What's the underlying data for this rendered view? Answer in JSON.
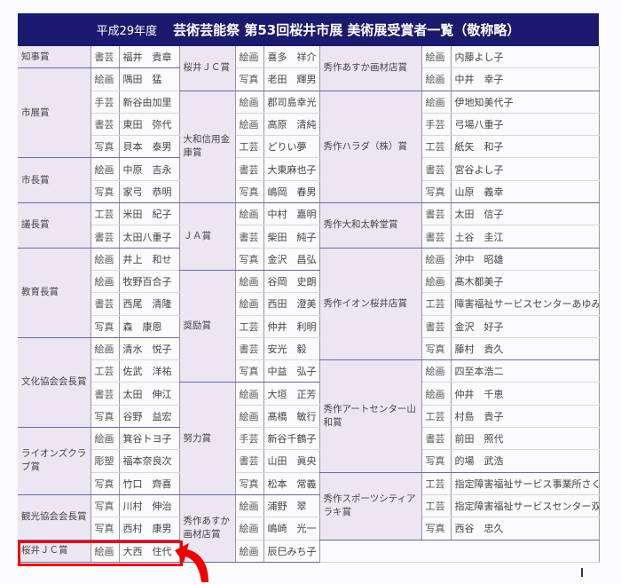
{
  "title": {
    "year": "平成29年度",
    "main": "芸術芸能祭 第53回桜井市展 美術展受賞者一覧（敬称略）"
  },
  "columns": [
    [
      {
        "award": "知事賞",
        "entries": [
          [
            "書芸",
            "福井　貴章"
          ]
        ]
      },
      {
        "award": "市展賞",
        "entries": [
          [
            "絵画",
            "隅田　猛"
          ],
          [
            "手芸",
            "新谷由加里"
          ],
          [
            "書芸",
            "東田　弥代"
          ],
          [
            "写真",
            "貝本　泰男"
          ]
        ]
      },
      {
        "award": "市長賞",
        "entries": [
          [
            "絵画",
            "中原　吉永"
          ],
          [
            "写真",
            "家弓　恭明"
          ]
        ]
      },
      {
        "award": "議長賞",
        "entries": [
          [
            "工芸",
            "米田　紀子"
          ],
          [
            "書芸",
            "太田八重子"
          ]
        ]
      },
      {
        "award": "教育長賞",
        "entries": [
          [
            "絵画",
            "井上　和せ"
          ],
          [
            "絵画",
            "牧野百合子"
          ],
          [
            "書芸",
            "西尾　清隆"
          ],
          [
            "写真",
            "森　康恩"
          ]
        ]
      },
      {
        "award": "文化協会会長賞",
        "entries": [
          [
            "絵画",
            "清水　悦子"
          ],
          [
            "工芸",
            "佐武　洋祐"
          ],
          [
            "書芸",
            "太田　伸江"
          ],
          [
            "写真",
            "谷野　益宏"
          ]
        ]
      },
      {
        "award": "ライオンズクラブ賞",
        "entries": [
          [
            "絵画",
            "箕谷トヨ子"
          ],
          [
            "彫塑",
            "福本奈良次"
          ],
          [
            "写真",
            "竹口　齊喜"
          ]
        ]
      },
      {
        "award": "観光協会会長賞",
        "entries": [
          [
            "写真",
            "川村　伸治"
          ],
          [
            "写真",
            "西村　康男"
          ]
        ]
      },
      {
        "award": "桜井ＪＣ賞",
        "entries": [
          [
            "絵画",
            "大西　住代"
          ]
        ]
      }
    ],
    [
      {
        "award": "桜井ＪＣ賞",
        "entries": [
          [
            "絵画",
            "喜多　祥介"
          ],
          [
            "写真",
            "老田　輝男"
          ]
        ]
      },
      {
        "award": "大和信用金庫賞",
        "entries": [
          [
            "絵画",
            "郡司島幸光"
          ],
          [
            "絵画",
            "高原　清純"
          ],
          [
            "工芸",
            "どりい夢"
          ],
          [
            "書芸",
            "大東麻也子"
          ],
          [
            "写真",
            "嶋岡　春男"
          ]
        ]
      },
      {
        "award": "ＪＡ賞",
        "entries": [
          [
            "絵画",
            "中村　嘉明"
          ],
          [
            "書芸",
            "柴田　純子"
          ],
          [
            "写真",
            "金沢　昌弘"
          ]
        ]
      },
      {
        "award": "奨励賞",
        "entries": [
          [
            "絵画",
            "谷岡　史朗"
          ],
          [
            "絵画",
            "西田　澄美"
          ],
          [
            "工芸",
            "仲井　利明"
          ],
          [
            "書芸",
            "安光　毅"
          ],
          [
            "写真",
            "中益　弘子"
          ]
        ]
      },
      {
        "award": "努力賞",
        "entries": [
          [
            "絵画",
            "大垣　正芳"
          ],
          [
            "絵画",
            "髙橋　敏行"
          ],
          [
            "手芸",
            "新谷千鶴子"
          ],
          [
            "書芸",
            "山田　眞央"
          ],
          [
            "写真",
            "松本　常義"
          ]
        ]
      },
      {
        "award": "秀作あすか画材店賞",
        "entries": [
          [
            "絵画",
            "浦野　翠"
          ],
          [
            "絵画",
            "嶋崎　光一"
          ],
          [
            "絵画",
            "辰巳みち子"
          ]
        ]
      }
    ],
    [
      {
        "award": "秀作あすか画材店賞",
        "entries": [
          [
            "絵画",
            "内藤よし子"
          ],
          [
            "絵画",
            "中井　幸子"
          ]
        ]
      },
      {
        "award": "秀作ハラダ（株）賞",
        "entries": [
          [
            "絵画",
            "伊地知美代子"
          ],
          [
            "手芸",
            "弓場八重子"
          ],
          [
            "工芸",
            "紙矢　和子"
          ],
          [
            "書芸",
            "宮谷よし子"
          ],
          [
            "写真",
            "山原　義幸"
          ]
        ]
      },
      {
        "award": "秀作大和太幹堂賞",
        "entries": [
          [
            "書芸",
            "太田　信子"
          ],
          [
            "書芸",
            "土谷　圭江"
          ]
        ]
      },
      {
        "award": "秀作イオン桜井店賞",
        "entries": [
          [
            "絵画",
            "沖中　昭雄"
          ],
          [
            "絵画",
            "髙木都美子"
          ],
          [
            "工芸",
            "障害福祉サービスセンターあゆみ"
          ],
          [
            "書芸",
            "金沢　好子"
          ],
          [
            "写真",
            "藤村　貴久"
          ]
        ]
      },
      {
        "award": "秀作アートセンター山和賞",
        "entries": [
          [
            "絵画",
            "四至本浩二"
          ],
          [
            "絵画",
            "仲井　千恵"
          ],
          [
            "工芸",
            "村島　貴子"
          ],
          [
            "書芸",
            "前田　照代"
          ],
          [
            "写真",
            "的場　武浩"
          ]
        ]
      },
      {
        "award": "秀作スポーツシティアラキ賞",
        "entries": [
          [
            "工芸",
            "指定障害福祉サービス事業所さくらんぼ"
          ],
          [
            "工芸",
            "指定障害福祉サービスセンター双葉"
          ],
          [
            "写真",
            "西谷　忠久"
          ]
        ]
      }
    ]
  ],
  "highlight_color": "#e00000",
  "header_color": "#1b1a6e"
}
